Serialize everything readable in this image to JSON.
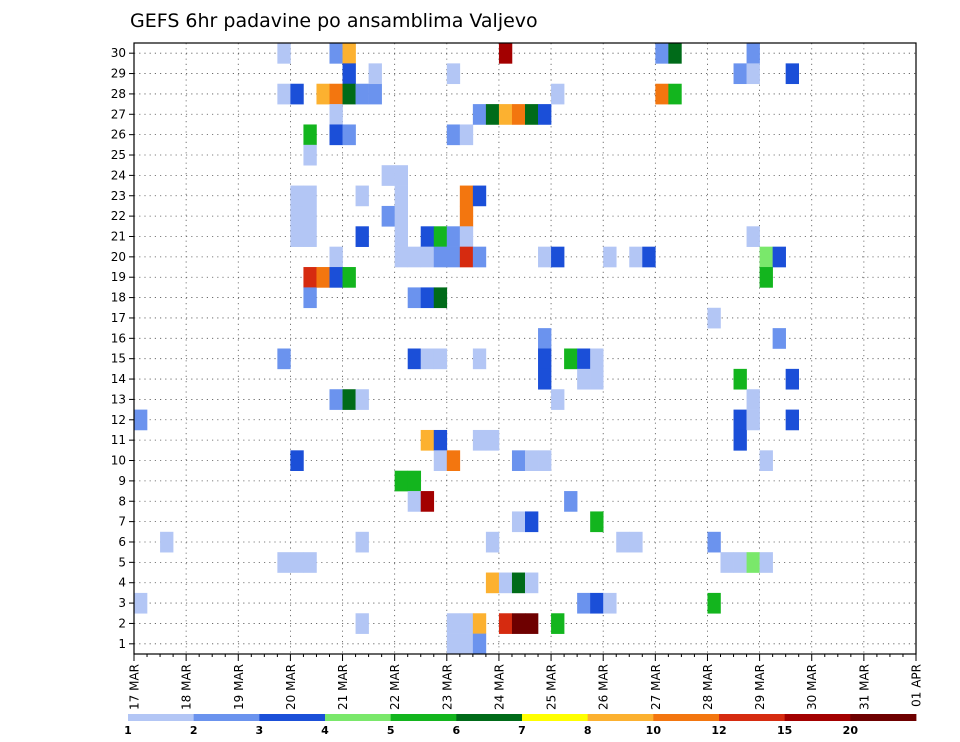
{
  "chart_data": {
    "type": "heatmap",
    "title": "GEFS 6hr padavine po ansamblima Valjevo",
    "ylim": [
      0.5,
      30.5
    ],
    "y_ticks": [
      1,
      2,
      3,
      4,
      5,
      6,
      7,
      8,
      9,
      10,
      11,
      12,
      13,
      14,
      15,
      16,
      17,
      18,
      19,
      20,
      21,
      22,
      23,
      24,
      25,
      26,
      27,
      28,
      29,
      30
    ],
    "x_range": [
      "17 MAR 00Z",
      "01 APR 00Z"
    ],
    "x_step": "6 hours",
    "x_tick_labels": [
      "17 MAR",
      "18 MAR",
      "19 MAR",
      "20 MAR",
      "21 MAR",
      "22 MAR",
      "23 MAR",
      "24 MAR",
      "25 MAR",
      "26 MAR",
      "27 MAR",
      "28 MAR",
      "29 MAR",
      "30 MAR",
      "31 MAR",
      "01 APR"
    ],
    "grid": true,
    "legend_placement": "bottom",
    "legend": {
      "levels": [
        1,
        2,
        3,
        4,
        5,
        6,
        7,
        8,
        10,
        12,
        15,
        20
      ],
      "colors": [
        "#b3c6f5",
        "#6b93ee",
        "#1b4fd8",
        "#7ae86b",
        "#13b51e",
        "#006b19",
        "#ffff00",
        "#fcb130",
        "#f3760f",
        "#d62b10",
        "#a30000",
        "#6e0000"
      ]
    },
    "cells": [
      [
        0,
        3,
        1
      ],
      [
        0,
        12,
        2
      ],
      [
        2,
        6,
        1
      ],
      [
        11,
        5,
        1
      ],
      [
        11,
        30,
        1
      ],
      [
        11,
        28,
        1
      ],
      [
        11,
        15,
        2
      ],
      [
        12,
        28,
        3
      ],
      [
        12,
        10,
        3
      ],
      [
        12,
        5,
        1
      ],
      [
        12,
        21,
        1
      ],
      [
        12,
        22,
        1
      ],
      [
        12,
        23,
        1
      ],
      [
        13,
        26,
        5
      ],
      [
        13,
        25,
        1
      ],
      [
        13,
        23,
        1
      ],
      [
        13,
        22,
        1
      ],
      [
        13,
        21,
        1
      ],
      [
        13,
        19,
        12
      ],
      [
        13,
        18,
        2
      ],
      [
        13,
        5,
        1
      ],
      [
        14,
        28,
        8
      ],
      [
        14,
        19,
        10
      ],
      [
        15,
        30,
        2
      ],
      [
        15,
        28,
        10
      ],
      [
        15,
        27,
        1
      ],
      [
        15,
        26,
        3
      ],
      [
        15,
        20,
        1
      ],
      [
        15,
        19,
        3
      ],
      [
        15,
        13,
        2
      ],
      [
        16,
        30,
        8
      ],
      [
        16,
        29,
        3
      ],
      [
        16,
        28,
        6
      ],
      [
        16,
        26,
        2
      ],
      [
        16,
        19,
        5
      ],
      [
        16,
        13,
        6
      ],
      [
        17,
        28,
        2
      ],
      [
        17,
        23,
        1
      ],
      [
        17,
        21,
        3
      ],
      [
        17,
        13,
        1
      ],
      [
        17,
        6,
        1
      ],
      [
        17,
        2,
        1
      ],
      [
        18,
        28,
        2
      ],
      [
        18,
        29,
        1
      ],
      [
        19,
        24,
        1
      ],
      [
        19,
        22,
        2
      ],
      [
        20,
        24,
        1
      ],
      [
        20,
        23,
        1
      ],
      [
        20,
        22,
        1
      ],
      [
        20,
        21,
        1
      ],
      [
        20,
        20,
        1
      ],
      [
        20,
        9,
        5
      ],
      [
        21,
        20,
        1
      ],
      [
        21,
        18,
        2
      ],
      [
        21,
        15,
        3
      ],
      [
        21,
        9,
        5
      ],
      [
        21,
        8,
        1
      ],
      [
        22,
        21,
        3
      ],
      [
        22,
        20,
        1
      ],
      [
        22,
        18,
        3
      ],
      [
        22,
        15,
        1
      ],
      [
        22,
        11,
        8
      ],
      [
        22,
        8,
        15
      ],
      [
        23,
        21,
        5
      ],
      [
        23,
        20,
        2
      ],
      [
        23,
        18,
        6
      ],
      [
        23,
        15,
        1
      ],
      [
        23,
        11,
        3
      ],
      [
        23,
        10,
        1
      ],
      [
        24,
        29,
        1
      ],
      [
        24,
        26,
        2
      ],
      [
        24,
        21,
        2
      ],
      [
        24,
        20,
        2
      ],
      [
        24,
        10,
        10
      ],
      [
        24,
        2,
        1
      ],
      [
        24,
        1,
        1
      ],
      [
        25,
        26,
        1
      ],
      [
        25,
        23,
        10
      ],
      [
        25,
        22,
        10
      ],
      [
        25,
        21,
        1
      ],
      [
        25,
        20,
        12
      ],
      [
        25,
        2,
        1
      ],
      [
        25,
        1,
        1
      ],
      [
        26,
        27,
        2
      ],
      [
        26,
        23,
        3
      ],
      [
        26,
        20,
        2
      ],
      [
        26,
        15,
        1
      ],
      [
        26,
        11,
        1
      ],
      [
        26,
        2,
        8
      ],
      [
        26,
        1,
        2
      ],
      [
        27,
        27,
        6
      ],
      [
        27,
        11,
        1
      ],
      [
        27,
        6,
        1
      ],
      [
        27,
        4,
        8
      ],
      [
        28,
        30,
        15
      ],
      [
        28,
        27,
        8
      ],
      [
        28,
        4,
        1
      ],
      [
        28,
        2,
        12
      ],
      [
        29,
        27,
        10
      ],
      [
        29,
        10,
        2
      ],
      [
        29,
        7,
        1
      ],
      [
        29,
        4,
        6
      ],
      [
        29,
        2,
        20
      ],
      [
        30,
        27,
        6
      ],
      [
        30,
        10,
        1
      ],
      [
        30,
        7,
        3
      ],
      [
        30,
        4,
        1
      ],
      [
        30,
        2,
        20
      ],
      [
        31,
        27,
        3
      ],
      [
        31,
        20,
        1
      ],
      [
        31,
        16,
        2
      ],
      [
        31,
        15,
        3
      ],
      [
        31,
        14,
        3
      ],
      [
        31,
        10,
        1
      ],
      [
        32,
        28,
        1
      ],
      [
        32,
        20,
        3
      ],
      [
        32,
        13,
        1
      ],
      [
        32,
        2,
        5
      ],
      [
        33,
        15,
        5
      ],
      [
        33,
        8,
        2
      ],
      [
        34,
        15,
        3
      ],
      [
        34,
        14,
        1
      ],
      [
        34,
        3,
        2
      ],
      [
        35,
        15,
        1
      ],
      [
        35,
        14,
        1
      ],
      [
        35,
        3,
        3
      ],
      [
        35,
        7,
        5
      ],
      [
        36,
        20,
        1
      ],
      [
        36,
        3,
        1
      ],
      [
        37,
        6,
        1
      ],
      [
        38,
        20,
        1
      ],
      [
        38,
        6,
        1
      ],
      [
        39,
        20,
        3
      ],
      [
        40,
        30,
        2
      ],
      [
        40,
        28,
        10
      ],
      [
        41,
        30,
        6
      ],
      [
        41,
        28,
        5
      ],
      [
        44,
        17,
        1
      ],
      [
        44,
        6,
        2
      ],
      [
        44,
        3,
        5
      ],
      [
        45,
        5,
        1
      ],
      [
        46,
        29,
        2
      ],
      [
        46,
        14,
        5
      ],
      [
        46,
        12,
        3
      ],
      [
        46,
        11,
        3
      ],
      [
        46,
        5,
        1
      ],
      [
        47,
        30,
        2
      ],
      [
        47,
        29,
        1
      ],
      [
        47,
        21,
        1
      ],
      [
        47,
        13,
        1
      ],
      [
        47,
        12,
        1
      ],
      [
        47,
        5,
        4
      ],
      [
        48,
        20,
        4
      ],
      [
        48,
        19,
        5
      ],
      [
        48,
        5,
        1
      ],
      [
        48,
        10,
        1
      ],
      [
        49,
        20,
        3
      ],
      [
        49,
        16,
        2
      ],
      [
        50,
        29,
        3
      ],
      [
        50,
        14,
        3
      ],
      [
        50,
        12,
        3
      ]
    ]
  }
}
